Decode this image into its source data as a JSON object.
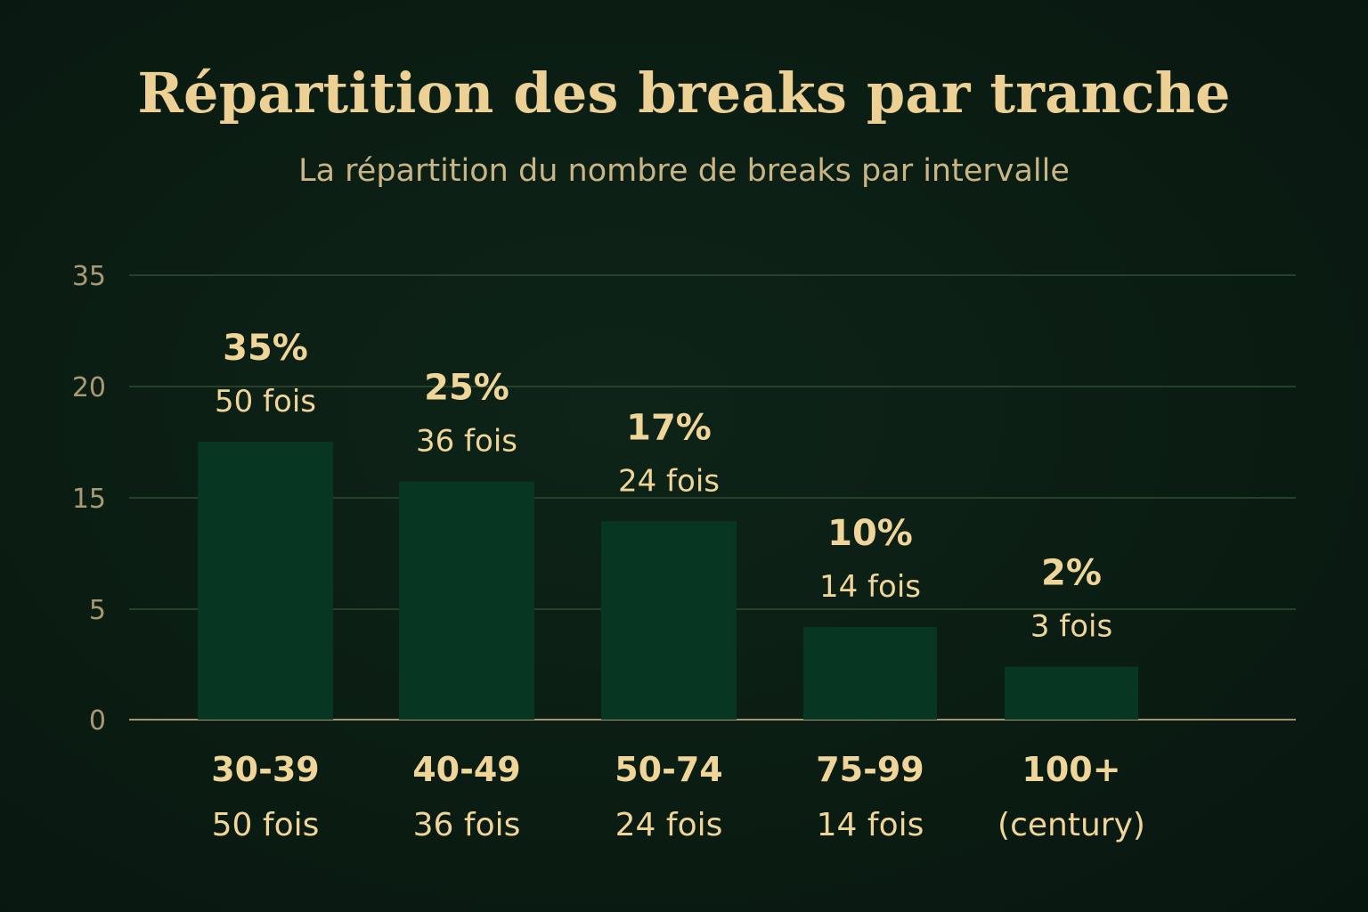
{
  "chart_data": {
    "type": "bar",
    "title": "Répartition des breaks par tranche",
    "subtitle": "La répartition du nombre de breaks par intervalle",
    "xlabel": "",
    "ylabel": "",
    "y_ticks": [
      "0",
      "5",
      "15",
      "20",
      "35"
    ],
    "categories": [
      "30-39",
      "40-49",
      "50-74",
      "75-99",
      "100+"
    ],
    "category_sublabels": [
      "50 fois",
      "36 fois",
      "24 fois",
      "14 fois",
      "(century)"
    ],
    "values": [
      21,
      18,
      15,
      7,
      4
    ],
    "percent_labels": [
      "35%",
      "25%",
      "17%",
      "10%",
      "2%"
    ],
    "count_labels": [
      "50 fois",
      "36 fois",
      "24 fois",
      "14 fois",
      "3 fois"
    ],
    "grid": true,
    "legend": "none",
    "colors": {
      "background": "#0b1d13",
      "bar": "#073723",
      "text": "#efd598",
      "gridline": "#27402a",
      "baseline": "#a8946a"
    }
  }
}
